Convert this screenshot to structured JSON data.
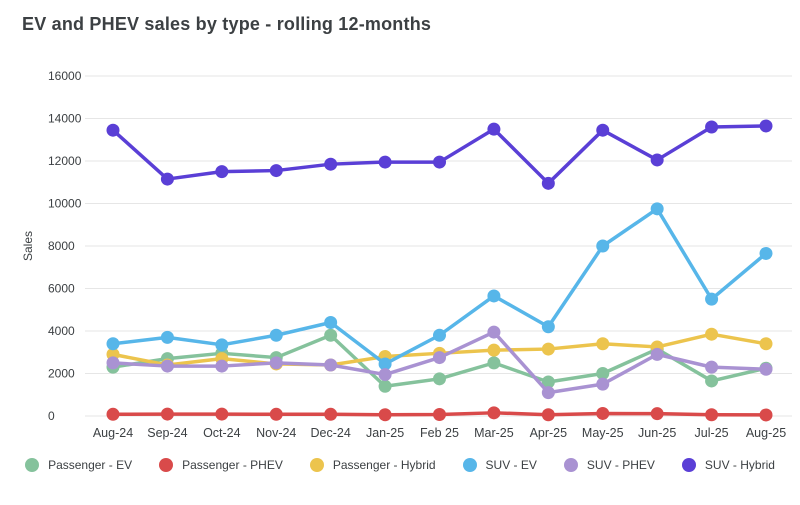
{
  "title": "EV and PHEV sales by type - rolling 12-months",
  "chart_data": {
    "type": "line",
    "title": "EV and PHEV sales by type - rolling 12-months",
    "xlabel": "",
    "ylabel": "Sales",
    "ylim": [
      0,
      16000
    ],
    "ytick_step": 2000,
    "grid": true,
    "legend_position": "bottom",
    "marker": "circle",
    "categories": [
      "Aug-24",
      "Sep-24",
      "Oct-24",
      "Nov-24",
      "Dec-24",
      "Jan-25",
      "Feb 25",
      "Mar-25",
      "Apr-25",
      "May-25",
      "Jun-25",
      "Jul-25",
      "Aug-25"
    ],
    "series": [
      {
        "name": "Passenger - EV",
        "color": "#85C29C",
        "values": [
          2300,
          2700,
          2950,
          2750,
          3800,
          1400,
          1750,
          2500,
          1600,
          2000,
          3150,
          1650,
          2250
        ]
      },
      {
        "name": "Passenger - PHEV",
        "color": "#D94A4A",
        "values": [
          80,
          90,
          90,
          80,
          80,
          60,
          70,
          150,
          60,
          120,
          110,
          60,
          50
        ]
      },
      {
        "name": "Passenger - Hybrid",
        "color": "#ECC44D",
        "values": [
          2900,
          2400,
          2700,
          2450,
          2400,
          2800,
          2950,
          3100,
          3150,
          3400,
          3250,
          3850,
          3400
        ]
      },
      {
        "name": "SUV - EV",
        "color": "#57B6E9",
        "values": [
          3400,
          3700,
          3350,
          3800,
          4400,
          2450,
          3800,
          5650,
          4200,
          8000,
          9750,
          5500,
          7650
        ]
      },
      {
        "name": "SUV - PHEV",
        "color": "#A992D2",
        "values": [
          2500,
          2350,
          2350,
          2500,
          2400,
          1950,
          2750,
          3950,
          1100,
          1500,
          2900,
          2300,
          2200
        ]
      },
      {
        "name": "SUV - Hybrid",
        "color": "#5A3FD6",
        "values": [
          13450,
          11150,
          11500,
          11550,
          11850,
          11950,
          11950,
          13500,
          10950,
          13450,
          12050,
          13600,
          13650
        ]
      }
    ]
  },
  "style": {
    "grid_color": "#e6e6e6",
    "tick_color": "#3c4043",
    "axis_label_color": "#3c4043",
    "background": "#ffffff",
    "line_width": 3.5,
    "marker_radius": 6.5
  }
}
